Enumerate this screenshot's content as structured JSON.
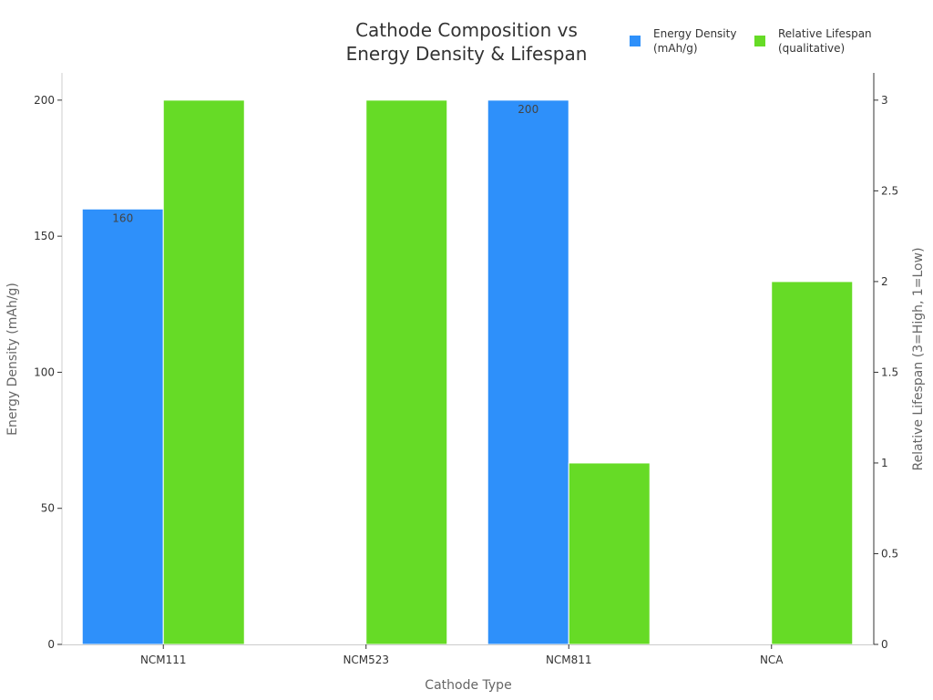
{
  "chart_data": {
    "type": "bar",
    "title": [
      "Cathode Composition vs",
      "Energy Density & Lifespan"
    ],
    "xlabel": "Cathode Type",
    "ylabel": "Energy Density (mAh/g)",
    "y2label": "Relative Lifespan (3=High, 1=Low)",
    "categories": [
      "NCM111",
      "NCM523",
      "NCM811",
      "NCA"
    ],
    "ylim": [
      0,
      210
    ],
    "y2lim": [
      0,
      3.15
    ],
    "yticks": [
      0,
      50,
      100,
      150,
      200
    ],
    "y2ticks": [
      0,
      0.5,
      1,
      1.5,
      2,
      2.5,
      3
    ],
    "grid": false,
    "legend_position": "top-right",
    "series": [
      {
        "name": "Energy Density (mAh/g)",
        "legend_lines": [
          "Energy Density",
          "(mAh/g)"
        ],
        "axis": "left",
        "color": "#2e90fa",
        "values": [
          160,
          null,
          200,
          null
        ],
        "data_labels": [
          "160",
          null,
          "200",
          null
        ]
      },
      {
        "name": "Relative Lifespan (qualitative)",
        "legend_lines": [
          "Relative Lifespan",
          "(qualitative)"
        ],
        "axis": "right",
        "color": "#66db26",
        "values": [
          3,
          3,
          1,
          2
        ],
        "data_labels": [
          null,
          null,
          null,
          null
        ]
      }
    ]
  }
}
